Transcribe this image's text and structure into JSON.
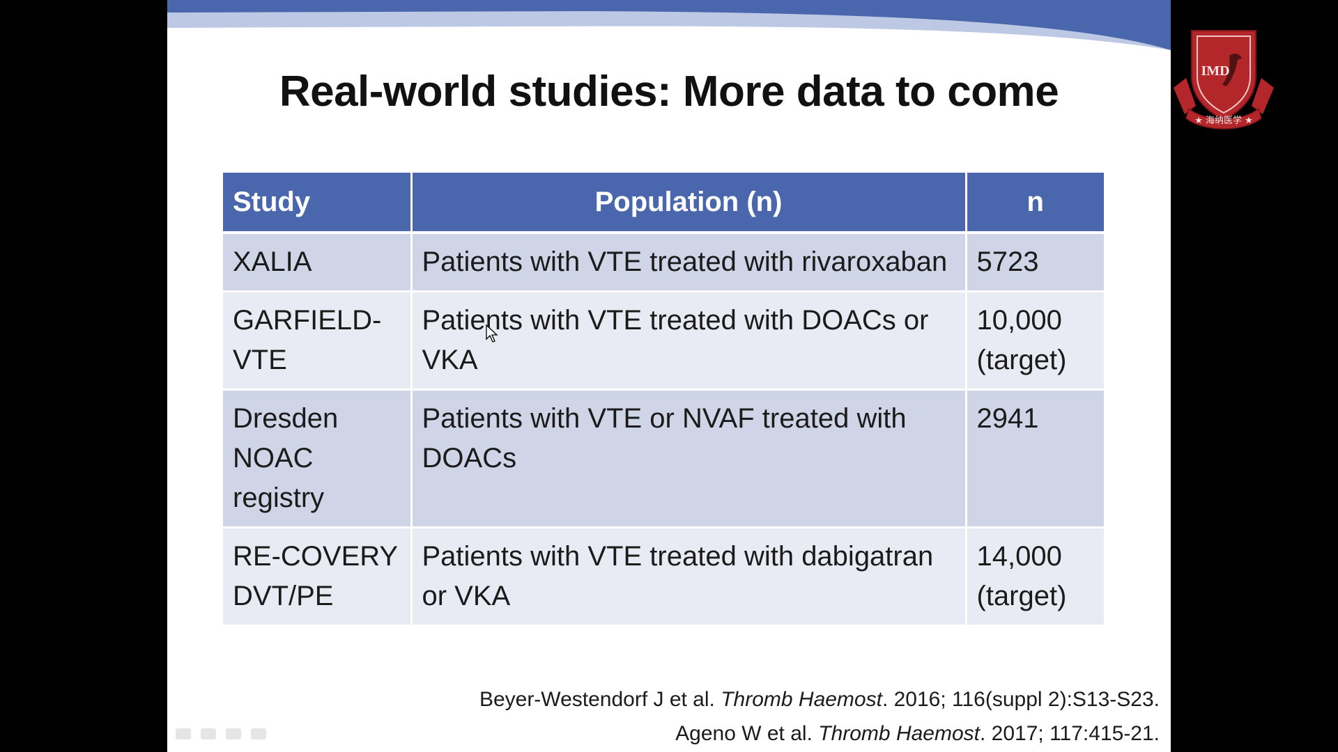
{
  "slide": {
    "title": "Real-world studies: More data to come",
    "table": {
      "headers": [
        "Study",
        "Population (n)",
        "n"
      ],
      "rows": [
        {
          "study": "XALIA",
          "population": "Patients with VTE treated with rivaroxaban",
          "n": "5723"
        },
        {
          "study": "GARFIELD-VTE",
          "population": "Patients with VTE treated with DOACs or VKA",
          "n": "10,000 (target)"
        },
        {
          "study": "Dresden NOAC registry",
          "population": "Patients with VTE or NVAF treated with DOACs",
          "n": "2941"
        },
        {
          "study": "RE-COVERY DVT/PE",
          "population": "Patients with VTE treated with dabigatran or VKA",
          "n": "14,000 (target)"
        }
      ]
    },
    "references": [
      {
        "authors": "Beyer-Westendorf J et al. ",
        "journal": "Thromb Haemost",
        "details": ". 2016; 116(suppl 2):S13-S23."
      },
      {
        "authors": "Ageno W et al. ",
        "journal": "Thromb Haemost",
        "details": ". 2017; 117:415-21."
      }
    ]
  },
  "logo": {
    "text": "IMD",
    "chinese": "★ 海纳医学 ★"
  },
  "colors": {
    "header_blue": "#4a67ad",
    "row_dark": "#cfd5e6",
    "row_light": "#e8ebf3",
    "logo_red": "#b3262a"
  }
}
